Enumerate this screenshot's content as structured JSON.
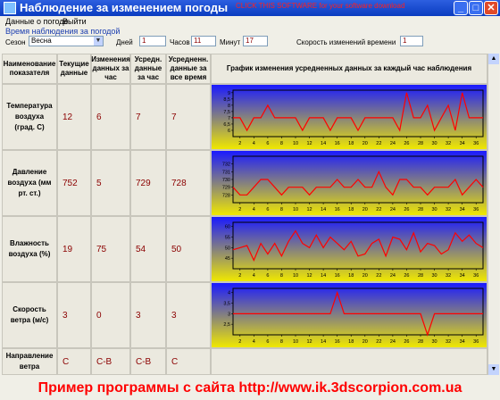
{
  "window": {
    "title": "Наблюдение за изменением погоды",
    "overlay_text": "CLICK THIS SOFTWARE for your software download"
  },
  "menu": [
    "Данные о погоде",
    "Выйти"
  ],
  "observation_time": "Время наблюдения за погодой",
  "controls": {
    "season_label": "Сезон",
    "season_value": "Весна",
    "days_label": "Дней",
    "days_value": "1",
    "hours_label": "Часов",
    "hours_value": "11",
    "minutes_label": "Минут",
    "minutes_value": "17",
    "speed_label": "Скорость изменений времени",
    "speed_value": "1"
  },
  "headers": {
    "name": "Наименование показателя",
    "current": "Текущие данные",
    "change": "Изменения данных за час",
    "avg": "Усредн. данные за час",
    "avg_total": "Усредненн. данные за все время",
    "graph": "График изменения усредненных данных за каждый час наблюдения"
  },
  "rows": [
    {
      "name": "Температура воздуха (град. С)",
      "current": "12",
      "change": "6",
      "avg": "7",
      "avg_total": "7"
    },
    {
      "name": "Давление воздуха (мм рт. ст.)",
      "current": "752",
      "change": "5",
      "avg": "729",
      "avg_total": "728"
    },
    {
      "name": "Влажность воздуха (%)",
      "current": "19",
      "change": "75",
      "avg": "54",
      "avg_total": "50"
    },
    {
      "name": "Скорость ветра (м/с)",
      "current": "3",
      "change": "0",
      "avg": "3",
      "avg_total": "3"
    },
    {
      "name": "Направление ветра",
      "current": "С",
      "change": "С-В",
      "avg": "С-В",
      "avg_total": "С"
    }
  ],
  "chart_data": [
    {
      "type": "line",
      "x": [
        1,
        2,
        3,
        4,
        5,
        6,
        7,
        8,
        9,
        10,
        11,
        12,
        13,
        14,
        15,
        16,
        17,
        18,
        19,
        20,
        21,
        22,
        23,
        24,
        25,
        26,
        27,
        28,
        29,
        30,
        31,
        32,
        33,
        34,
        35,
        36,
        37
      ],
      "ylim": [
        5.5,
        9.2
      ],
      "yticks": [
        "6",
        "6,5",
        "7",
        "7,5",
        "8",
        "8,5",
        "9"
      ],
      "xticks": [
        "2",
        "4",
        "6",
        "8",
        "10",
        "12",
        "14",
        "16",
        "18",
        "20",
        "22",
        "24",
        "26",
        "28",
        "30",
        "32",
        "34",
        "36"
      ],
      "series": [
        {
          "values": [
            7,
            7,
            6,
            7,
            7,
            8,
            7,
            7,
            7,
            7,
            6,
            7,
            7,
            7,
            6,
            7,
            7,
            7,
            6,
            7,
            7,
            7,
            7,
            7,
            6,
            9,
            7,
            7,
            8,
            6,
            7,
            8,
            6,
            9,
            7,
            7,
            7
          ]
        }
      ],
      "colors": {
        "line": "#ff0000",
        "bg_top": "#1a1aff",
        "bg_bottom": "#f0e800"
      }
    },
    {
      "type": "line",
      "x": [
        1,
        2,
        3,
        4,
        5,
        6,
        7,
        8,
        9,
        10,
        11,
        12,
        13,
        14,
        15,
        16,
        17,
        18,
        19,
        20,
        21,
        22,
        23,
        24,
        25,
        26,
        27,
        28,
        29,
        30,
        31,
        32,
        33,
        34,
        35,
        36,
        37
      ],
      "ylim": [
        727,
        733
      ],
      "yticks": [
        "728",
        "729",
        "730",
        "731",
        "732"
      ],
      "xticks": [
        "2",
        "4",
        "6",
        "8",
        "10",
        "12",
        "14",
        "16",
        "18",
        "20",
        "22",
        "24",
        "26",
        "28",
        "30",
        "32",
        "34",
        "36"
      ],
      "series": [
        {
          "values": [
            729,
            728,
            728,
            729,
            730,
            730,
            729,
            728,
            729,
            729,
            729,
            728,
            729,
            729,
            729,
            730,
            729,
            729,
            730,
            729,
            729,
            731,
            729,
            728,
            730,
            730,
            729,
            729,
            728,
            729,
            729,
            729,
            730,
            728,
            729,
            730,
            729
          ]
        }
      ],
      "colors": {
        "line": "#ff0000",
        "bg_top": "#1a1aff",
        "bg_bottom": "#f0e800"
      }
    },
    {
      "type": "line",
      "x": [
        1,
        2,
        3,
        4,
        5,
        6,
        7,
        8,
        9,
        10,
        11,
        12,
        13,
        14,
        15,
        16,
        17,
        18,
        19,
        20,
        21,
        22,
        23,
        24,
        25,
        26,
        27,
        28,
        29,
        30,
        31,
        32,
        33,
        34,
        35,
        36,
        37
      ],
      "ylim": [
        40,
        62
      ],
      "yticks": [
        "45",
        "50",
        "55",
        "60"
      ],
      "xticks": [
        "2",
        "4",
        "6",
        "8",
        "10",
        "12",
        "14",
        "16",
        "18",
        "20",
        "22",
        "24",
        "26",
        "28",
        "30",
        "32",
        "34",
        "36"
      ],
      "series": [
        {
          "values": [
            49,
            50,
            51,
            44,
            52,
            47,
            52,
            46,
            53,
            58,
            52,
            50,
            56,
            50,
            55,
            52,
            49,
            53,
            46,
            47,
            52,
            54,
            46,
            55,
            54,
            49,
            57,
            48,
            52,
            51,
            47,
            49,
            57,
            53,
            56,
            52,
            50
          ]
        }
      ],
      "colors": {
        "line": "#ff0000",
        "bg_top": "#1a1aff",
        "bg_bottom": "#f0e800"
      }
    },
    {
      "type": "line",
      "x": [
        1,
        2,
        3,
        4,
        5,
        6,
        7,
        8,
        9,
        10,
        11,
        12,
        13,
        14,
        15,
        16,
        17,
        18,
        19,
        20,
        21,
        22,
        23,
        24,
        25,
        26,
        27,
        28,
        29,
        30,
        31,
        32,
        33,
        34,
        35,
        36,
        37
      ],
      "ylim": [
        2,
        4.2
      ],
      "yticks": [
        "2,5",
        "3",
        "3,5",
        "4"
      ],
      "xticks": [
        "2",
        "4",
        "6",
        "8",
        "10",
        "12",
        "14",
        "16",
        "18",
        "20",
        "22",
        "24",
        "26",
        "28",
        "30",
        "32",
        "34",
        "36"
      ],
      "series": [
        {
          "values": [
            3,
            3,
            3,
            3,
            3,
            3,
            3,
            3,
            3,
            3,
            3,
            3,
            3,
            3,
            3,
            4,
            3,
            3,
            3,
            3,
            3,
            3,
            3,
            3,
            3,
            3,
            3,
            3,
            2,
            3,
            3,
            3,
            3,
            3,
            3,
            3,
            3
          ]
        }
      ],
      "colors": {
        "line": "#ff0000",
        "bg_top": "#1a1aff",
        "bg_bottom": "#f0e800"
      }
    }
  ],
  "footer": "Пример программы с сайта http://www.ik.3dscorpion.com.ua"
}
